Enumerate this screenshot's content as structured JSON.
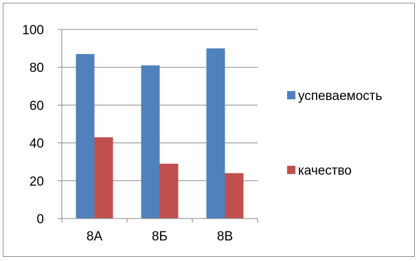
{
  "chart_data": {
    "type": "bar",
    "categories": [
      "8А",
      "8Б",
      "8В"
    ],
    "series": [
      {
        "name": "успеваемость",
        "values": [
          87,
          81,
          90
        ],
        "color": "#4f81bd"
      },
      {
        "name": "качество",
        "values": [
          43,
          29,
          24
        ],
        "color": "#c0504d"
      }
    ],
    "title": "",
    "xlabel": "",
    "ylabel": "",
    "ylim": [
      0,
      100
    ],
    "yticks": [
      0,
      20,
      40,
      60,
      80,
      100
    ],
    "grid": true,
    "legend_position": "right"
  }
}
